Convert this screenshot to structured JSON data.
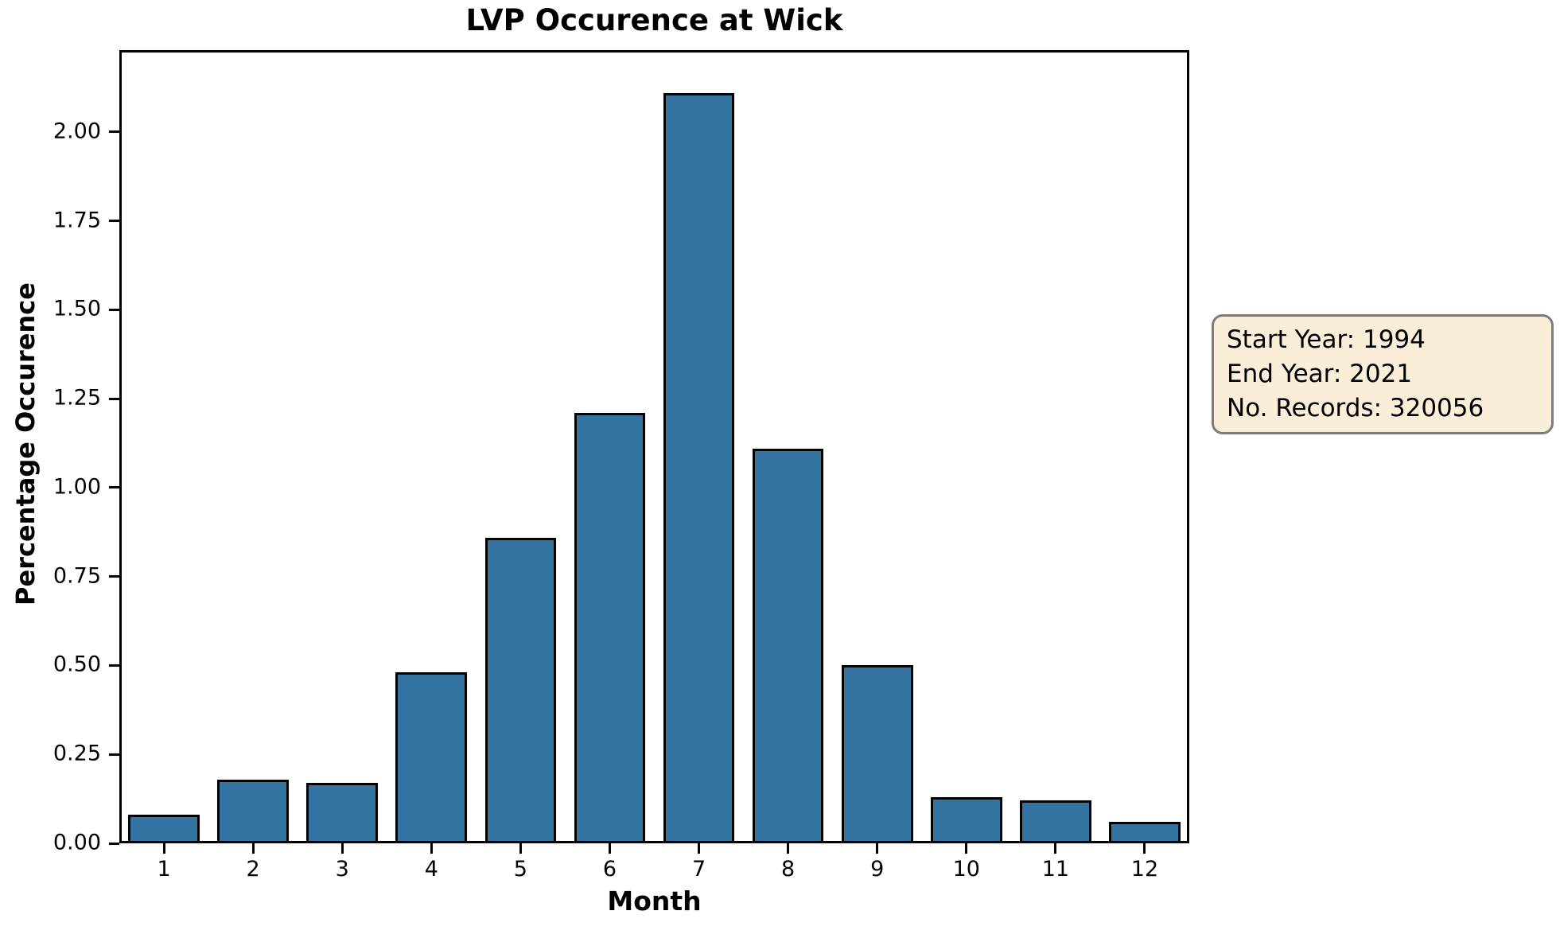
{
  "chart_data": {
    "type": "bar",
    "title": "LVP Occurence at Wick",
    "xlabel": "Month",
    "ylabel": "Percentage Occurence",
    "categories": [
      "1",
      "2",
      "3",
      "4",
      "5",
      "6",
      "7",
      "8",
      "9",
      "10",
      "11",
      "12"
    ],
    "values": [
      0.08,
      0.18,
      0.17,
      0.48,
      0.86,
      1.21,
      2.11,
      1.11,
      0.5,
      0.13,
      0.12,
      0.06
    ],
    "yticks": [
      "0.00",
      "0.25",
      "0.50",
      "0.75",
      "1.00",
      "1.25",
      "1.50",
      "1.75",
      "2.00"
    ],
    "ylim": [
      0,
      2.23
    ],
    "bar_width_fraction": 0.8,
    "grid": false,
    "legend_position": "none",
    "annotation": {
      "lines": [
        "Start Year: 1994",
        "End Year: 2021",
        "No. Records: 320056"
      ]
    },
    "colors": {
      "bar_fill": "#3374a3",
      "bar_edge": "#000000",
      "annotation_bg": "#faeed8",
      "annotation_border": "#7c7c7c",
      "text": "#000000",
      "background": "#ffffff"
    }
  }
}
